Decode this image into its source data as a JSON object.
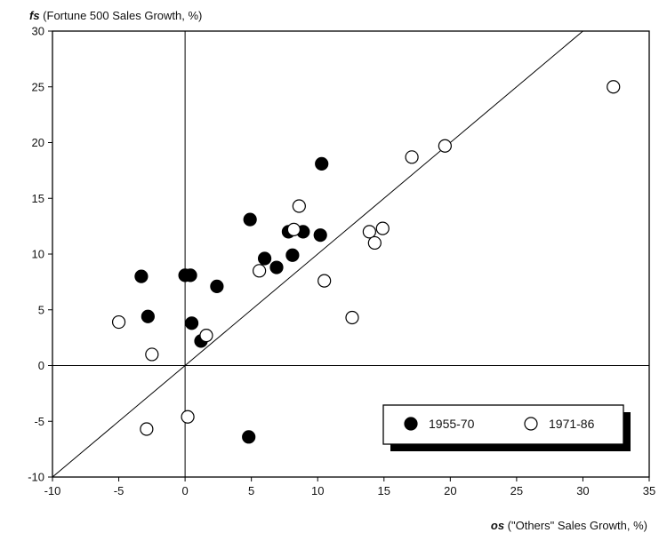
{
  "chart_data": {
    "type": "scatter",
    "title": "",
    "ylabel_symbol": "fs",
    "ylabel_text": " (Fortune 500 Sales Growth, %)",
    "xlabel_symbol": "os",
    "xlabel_text": " (\"Others\" Sales Growth, %)",
    "xlim": [
      -10,
      35
    ],
    "ylim": [
      -10,
      30
    ],
    "xticks": [
      -10,
      -5,
      0,
      5,
      10,
      15,
      20,
      25,
      30,
      35
    ],
    "yticks": [
      -10,
      -5,
      0,
      5,
      10,
      15,
      20,
      25,
      30
    ],
    "xtick_labels": [
      "-10",
      "-5",
      "0",
      "5",
      "10",
      "15",
      "20",
      "25",
      "30",
      "35"
    ],
    "ytick_labels": [
      "-10",
      "-5",
      "0",
      "5",
      "10",
      "15",
      "20",
      "25",
      "30"
    ],
    "reference_line": "y = x",
    "grid": false,
    "legend_position": "bottom-right",
    "series": [
      {
        "name": "1955-70",
        "marker": "filled-circle",
        "color": "#000000",
        "points": [
          [
            -3.3,
            8.0
          ],
          [
            -2.8,
            4.4
          ],
          [
            0.0,
            8.1
          ],
          [
            0.4,
            8.1
          ],
          [
            0.5,
            3.8
          ],
          [
            1.2,
            2.2
          ],
          [
            2.4,
            7.1
          ],
          [
            4.9,
            13.1
          ],
          [
            6.0,
            9.6
          ],
          [
            6.9,
            8.8
          ],
          [
            7.8,
            12.0
          ],
          [
            8.1,
            9.9
          ],
          [
            8.9,
            12.0
          ],
          [
            10.2,
            11.7
          ],
          [
            10.3,
            18.1
          ],
          [
            4.8,
            -6.4
          ]
        ]
      },
      {
        "name": "1971-86",
        "marker": "open-circle",
        "color": "#000000",
        "points": [
          [
            -5.0,
            3.9
          ],
          [
            -2.5,
            1.0
          ],
          [
            -2.9,
            -5.7
          ],
          [
            0.2,
            -4.6
          ],
          [
            1.6,
            2.7
          ],
          [
            5.6,
            8.5
          ],
          [
            8.2,
            12.2
          ],
          [
            8.6,
            14.3
          ],
          [
            10.5,
            7.6
          ],
          [
            12.6,
            4.3
          ],
          [
            13.9,
            12.0
          ],
          [
            14.3,
            11.0
          ],
          [
            14.9,
            12.3
          ],
          [
            17.1,
            18.7
          ],
          [
            19.6,
            19.7
          ],
          [
            32.3,
            25.0
          ]
        ]
      }
    ]
  }
}
